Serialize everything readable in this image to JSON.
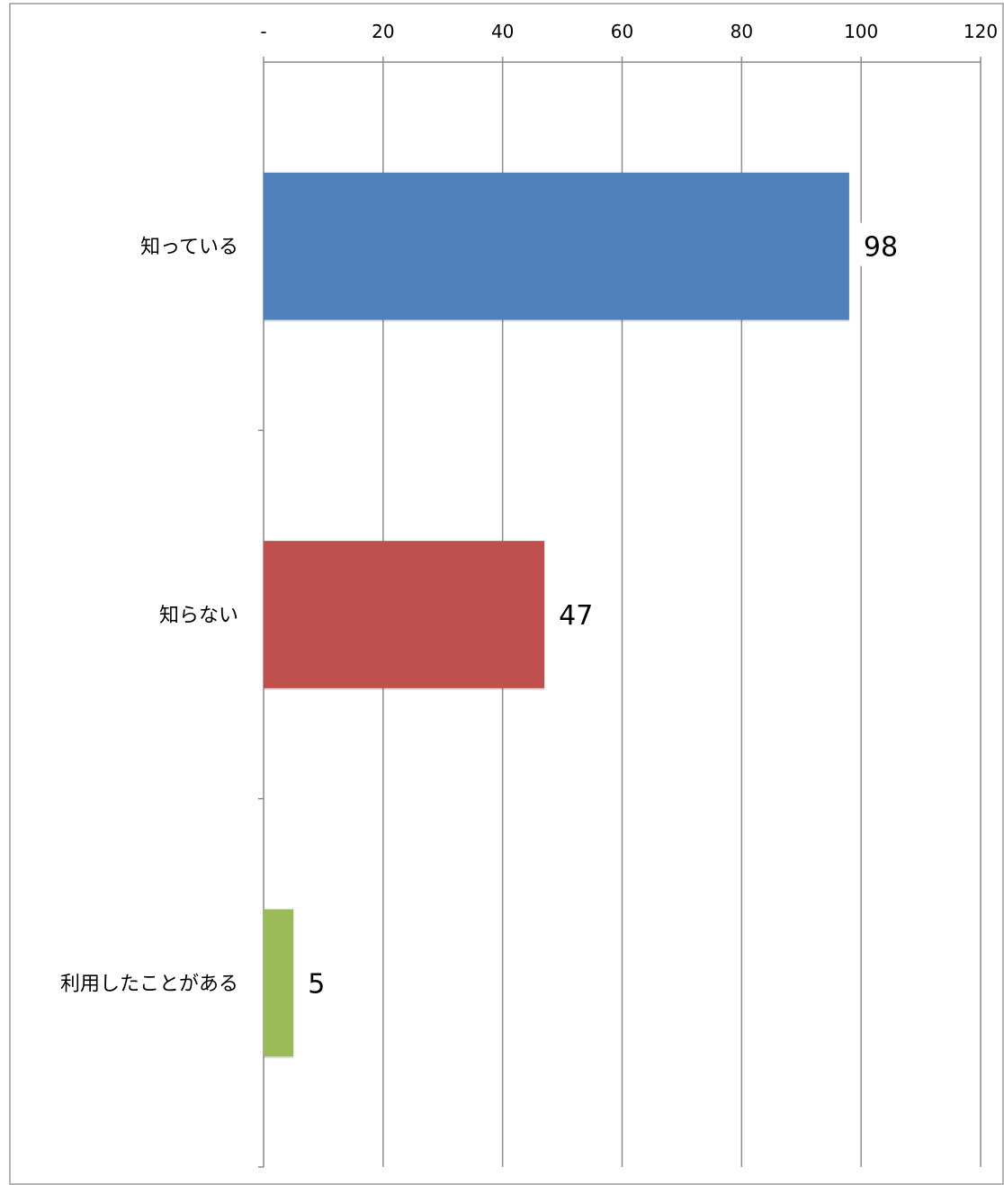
{
  "chart_data": {
    "type": "bar",
    "orientation": "horizontal",
    "categories": [
      "知っている",
      "知らない",
      "利用したことがある"
    ],
    "values": [
      98,
      47,
      5
    ],
    "bar_colors": [
      "#4F81BD",
      "#C0504D",
      "#9BBB59"
    ],
    "data_labels": [
      "98",
      "47",
      "5"
    ],
    "xlim": [
      0,
      120
    ],
    "x_ticks": [
      0,
      20,
      40,
      60,
      80,
      100,
      120
    ],
    "x_tick_labels": [
      "-",
      "20",
      "40",
      "60",
      "80",
      "100",
      "120"
    ],
    "x_axis_position": "top",
    "grid": true,
    "legend": false,
    "title": "",
    "xlabel": "",
    "ylabel": ""
  }
}
